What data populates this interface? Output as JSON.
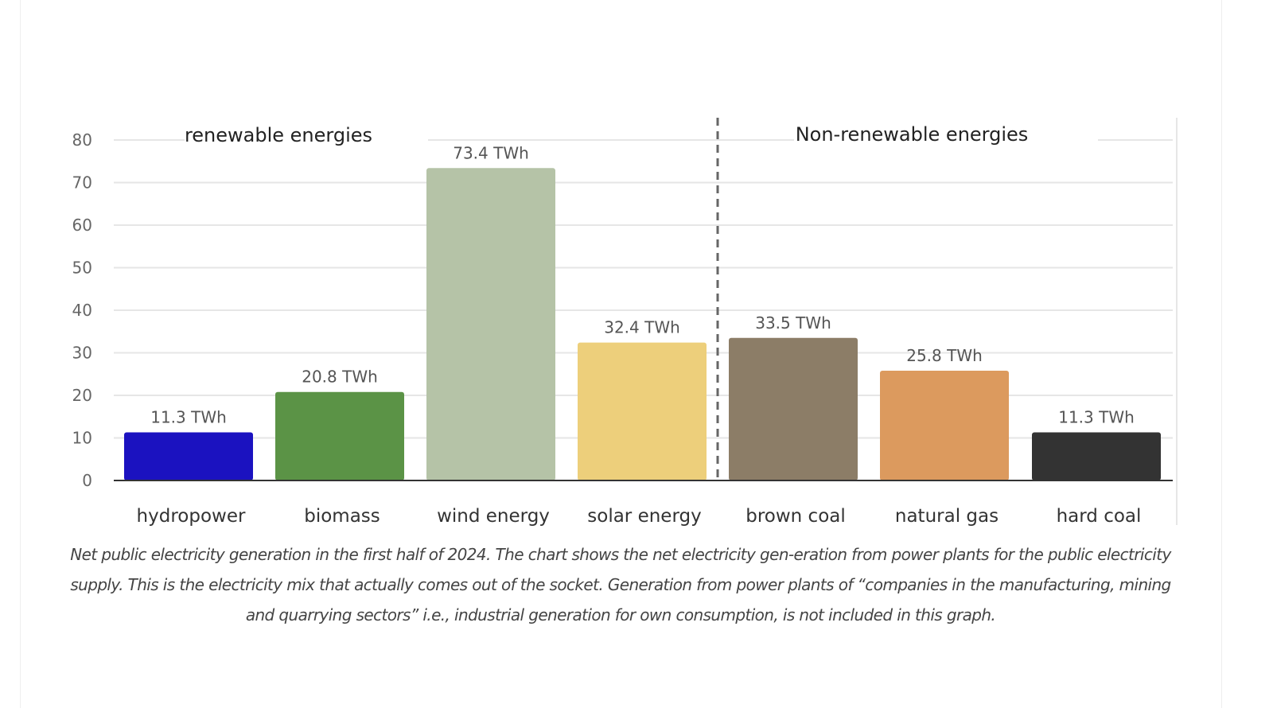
{
  "chart_data": {
    "type": "bar",
    "categories": [
      "hydropower",
      "biomass",
      "wind energy",
      "solar energy",
      "brown coal",
      "natural gas",
      "hard coal"
    ],
    "values": [
      11.3,
      20.8,
      73.4,
      32.4,
      33.5,
      25.8,
      11.3
    ],
    "data_labels": [
      "11.3 TWh",
      "20.8 TWh",
      "73.4 TWh",
      "32.4 TWh",
      "33.5 TWh",
      "25.8 TWh",
      "11.3 TWh"
    ],
    "colors": [
      "#1b12c0",
      "#5b9346",
      "#b5c3a7",
      "#edcf7b",
      "#8c7d67",
      "#dc9a5e",
      "#333333"
    ],
    "ylim": [
      0,
      80
    ],
    "yticks": [
      "0",
      "10",
      "20",
      "30",
      "40",
      "50",
      "60",
      "70",
      "80"
    ],
    "grid": true,
    "groups": [
      {
        "label": "renewable energies"
      },
      {
        "label": "Non-renewable energies"
      }
    ],
    "xlabel": "",
    "ylabel": "",
    "title": ""
  },
  "caption": "Net public electricity generation in the first half of 2024. The chart shows the net electricity gen-eration from power plants for the public electricity supply. This is the electricity mix that actually comes out of the socket. Generation from power plants of “companies in the manufacturing, mining and quarrying sectors” i.e., industrial generation for own consumption, is not included in this graph."
}
